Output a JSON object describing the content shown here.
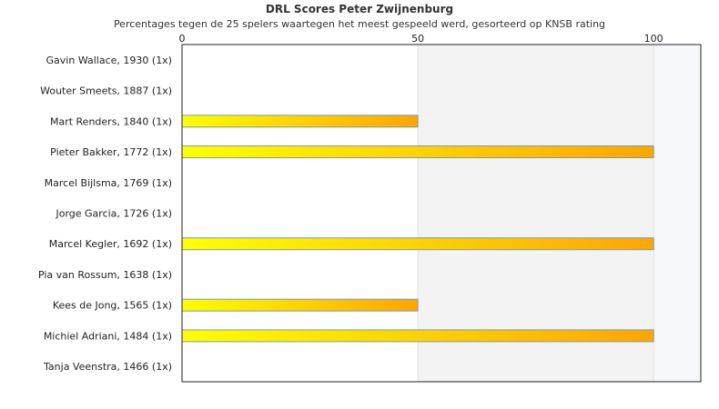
{
  "chart_data": {
    "type": "bar",
    "orientation": "horizontal",
    "title": "DRL Scores Peter Zwijnenburg",
    "subtitle": "Percentages tegen de 25 spelers waartegen het meest gespeeld werd, gesorteerd op KNSB rating",
    "categories": [
      "Gavin Wallace, 1930 (1x)",
      "Wouter Smeets, 1887 (1x)",
      "Mart Renders, 1840 (1x)",
      "Pieter Bakker, 1772 (1x)",
      "Marcel Bijlsma, 1769 (1x)",
      "Jorge Garcia, 1726 (1x)",
      "Marcel Kegler, 1692 (1x)",
      "Pia van Rossum, 1638 (1x)",
      "Kees de Jong, 1565 (1x)",
      "Michiel Adriani, 1484 (1x)",
      "Tanja Veenstra, 1466 (1x)"
    ],
    "values": [
      0,
      0,
      50,
      100,
      0,
      0,
      100,
      0,
      50,
      100,
      0
    ],
    "xlim": [
      0,
      110
    ],
    "xticks": [
      0,
      50,
      100
    ],
    "xlabel": "",
    "ylabel": "",
    "grid": true,
    "legend": "none",
    "colors": {
      "bar_start": "#ffff00",
      "bar_end": "#ffa500",
      "bar_border": "#6f9fbf",
      "band_light": "#ffffff",
      "band_shade": "#f3f3f3",
      "band_tail": "#f7f8fc",
      "axis": "#222222"
    }
  }
}
